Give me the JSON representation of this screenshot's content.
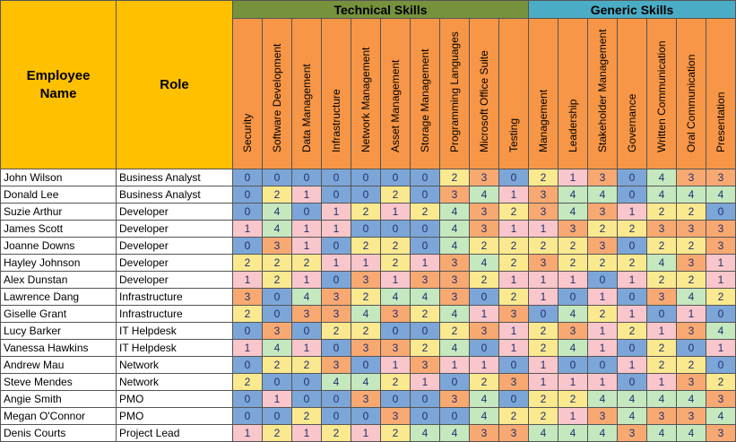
{
  "headers": {
    "employee_name": "Employee\nName",
    "role": "Role",
    "technical_group": "Technical Skills",
    "generic_group": "Generic Skills"
  },
  "colors": {
    "header_gold": "#ffc000",
    "header_orange": "#f79646",
    "technical_band": "#76923c",
    "generic_band": "#4bacc6",
    "score_0": "#7da6d8",
    "score_1": "#f9c6cb",
    "score_2": "#fbe98f",
    "score_3": "#f8a972",
    "score_4": "#c5e8bf"
  },
  "technical_skills": [
    "Security",
    "Software Development",
    "Data Management",
    "Infrastructure",
    "Network Management",
    "Asset Management",
    "Storage Management",
    "Programming Languages",
    "Microsoft Office Suite",
    "Testing"
  ],
  "generic_skills": [
    "Management",
    "Leadership",
    "Stakeholder Management",
    "Governance",
    "Written Communication",
    "Oral Communication",
    "Presentation"
  ],
  "employees": [
    {
      "name": "John Wilson",
      "role": "Business Analyst",
      "scores": [
        0,
        0,
        0,
        0,
        0,
        0,
        0,
        2,
        3,
        0,
        2,
        1,
        3,
        0,
        4,
        3,
        3
      ]
    },
    {
      "name": "Donald Lee",
      "role": "Business Analyst",
      "scores": [
        0,
        2,
        1,
        0,
        0,
        2,
        0,
        3,
        4,
        1,
        3,
        4,
        4,
        0,
        4,
        4,
        4
      ]
    },
    {
      "name": "Suzie Arthur",
      "role": "Developer",
      "scores": [
        0,
        4,
        0,
        1,
        2,
        1,
        2,
        4,
        3,
        2,
        3,
        4,
        3,
        1,
        2,
        2,
        0
      ]
    },
    {
      "name": "James Scott",
      "role": "Developer",
      "scores": [
        1,
        4,
        1,
        1,
        0,
        0,
        0,
        4,
        3,
        1,
        1,
        3,
        2,
        2,
        3,
        3,
        3
      ]
    },
    {
      "name": "Joanne Downs",
      "role": "Developer",
      "scores": [
        0,
        3,
        1,
        0,
        2,
        2,
        0,
        4,
        2,
        2,
        2,
        2,
        3,
        0,
        2,
        2,
        3
      ]
    },
    {
      "name": "Hayley Johnson",
      "role": "Developer",
      "scores": [
        2,
        2,
        2,
        1,
        1,
        2,
        1,
        3,
        4,
        2,
        3,
        2,
        2,
        2,
        4,
        3,
        1
      ]
    },
    {
      "name": "Alex Dunstan",
      "role": "Developer",
      "scores": [
        1,
        2,
        1,
        0,
        3,
        1,
        3,
        3,
        2,
        1,
        1,
        1,
        0,
        1,
        2,
        2,
        1
      ]
    },
    {
      "name": "Lawrence Dang",
      "role": "Infrastructure",
      "scores": [
        3,
        0,
        4,
        3,
        2,
        4,
        4,
        3,
        0,
        2,
        1,
        0,
        1,
        0,
        3,
        4,
        2
      ]
    },
    {
      "name": "Giselle Grant",
      "role": "Infrastructure",
      "scores": [
        2,
        0,
        3,
        3,
        4,
        3,
        2,
        4,
        1,
        3,
        0,
        4,
        2,
        1,
        0,
        1,
        0
      ]
    },
    {
      "name": "Lucy Barker",
      "role": "IT Helpdesk",
      "scores": [
        0,
        3,
        0,
        2,
        2,
        0,
        0,
        2,
        3,
        1,
        2,
        3,
        1,
        2,
        1,
        3,
        4
      ]
    },
    {
      "name": "Vanessa Hawkins",
      "role": "IT Helpdesk",
      "scores": [
        1,
        4,
        1,
        0,
        3,
        3,
        2,
        4,
        0,
        1,
        2,
        4,
        1,
        0,
        2,
        0,
        1
      ]
    },
    {
      "name": "Andrew Mau",
      "role": "Network",
      "scores": [
        0,
        2,
        2,
        3,
        0,
        1,
        3,
        1,
        1,
        0,
        1,
        0,
        0,
        1,
        2,
        2,
        0
      ]
    },
    {
      "name": "Steve Mendes",
      "role": "Network",
      "scores": [
        2,
        0,
        0,
        4,
        4,
        2,
        1,
        0,
        2,
        3,
        1,
        1,
        1,
        0,
        1,
        3,
        2
      ]
    },
    {
      "name": "Angie Smith",
      "role": "PMO",
      "scores": [
        0,
        1,
        0,
        0,
        3,
        0,
        0,
        3,
        4,
        0,
        2,
        2,
        4,
        4,
        4,
        4,
        3
      ]
    },
    {
      "name": "Megan O'Connor",
      "role": "PMO",
      "scores": [
        0,
        0,
        2,
        0,
        0,
        3,
        0,
        0,
        4,
        2,
        2,
        1,
        3,
        4,
        3,
        3,
        4
      ]
    },
    {
      "name": "Denis Courts",
      "role": "Project Lead",
      "scores": [
        1,
        2,
        1,
        2,
        1,
        2,
        4,
        4,
        3,
        3,
        4,
        4,
        4,
        3,
        4,
        4,
        3
      ]
    }
  ]
}
